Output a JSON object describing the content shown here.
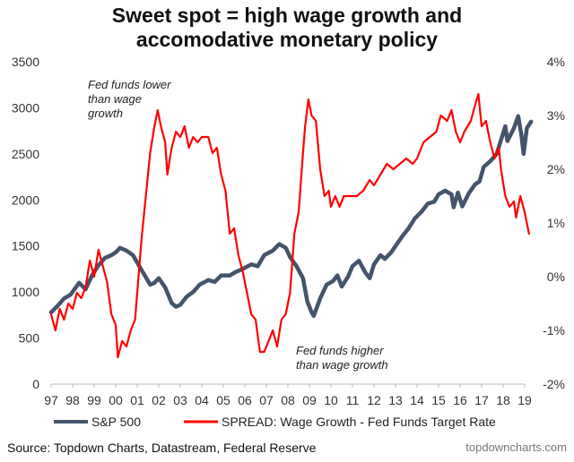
{
  "chart_data": {
    "type": "line",
    "title_lines": [
      "Sweet spot = high wage growth and",
      "accomodative monetary policy"
    ],
    "x_tick_labels": [
      "97",
      "98",
      "99",
      "00",
      "01",
      "02",
      "03",
      "04",
      "05",
      "06",
      "07",
      "08",
      "09",
      "10",
      "11",
      "12",
      "13",
      "14",
      "15",
      "16",
      "17",
      "18",
      "19"
    ],
    "x_range": [
      1997,
      2019
    ],
    "y_left": {
      "range": [
        0,
        3500
      ],
      "ticks": [
        0,
        500,
        1000,
        1500,
        2000,
        2500,
        3000,
        3500
      ],
      "tick_labels": [
        "0",
        "500",
        "1000",
        "1500",
        "2000",
        "2500",
        "3000",
        "3500"
      ]
    },
    "y_right": {
      "range": [
        -2,
        4
      ],
      "ticks": [
        -2,
        -1,
        0,
        1,
        2,
        3,
        4
      ],
      "tick_labels": [
        "-2%",
        "-1%",
        "0%",
        "1%",
        "2%",
        "3%",
        "4%"
      ]
    },
    "series": [
      {
        "name": "S&P 500",
        "axis": "left",
        "color": "#44546a",
        "points": [
          [
            1997.0,
            780
          ],
          [
            1997.3,
            850
          ],
          [
            1997.6,
            930
          ],
          [
            1997.9,
            970
          ],
          [
            1998.3,
            1100
          ],
          [
            1998.6,
            1030
          ],
          [
            1998.9,
            1180
          ],
          [
            1999.2,
            1290
          ],
          [
            1999.5,
            1370
          ],
          [
            1999.8,
            1400
          ],
          [
            2000.0,
            1430
          ],
          [
            2000.2,
            1480
          ],
          [
            2000.5,
            1450
          ],
          [
            2000.8,
            1400
          ],
          [
            2001.0,
            1320
          ],
          [
            2001.3,
            1200
          ],
          [
            2001.6,
            1080
          ],
          [
            2001.8,
            1100
          ],
          [
            2002.0,
            1150
          ],
          [
            2002.3,
            1050
          ],
          [
            2002.6,
            880
          ],
          [
            2002.8,
            840
          ],
          [
            2003.0,
            860
          ],
          [
            2003.3,
            950
          ],
          [
            2003.6,
            1000
          ],
          [
            2003.9,
            1080
          ],
          [
            2004.3,
            1130
          ],
          [
            2004.6,
            1110
          ],
          [
            2004.9,
            1180
          ],
          [
            2005.3,
            1180
          ],
          [
            2005.6,
            1220
          ],
          [
            2005.9,
            1250
          ],
          [
            2006.3,
            1300
          ],
          [
            2006.6,
            1280
          ],
          [
            2006.9,
            1400
          ],
          [
            2007.3,
            1450
          ],
          [
            2007.6,
            1520
          ],
          [
            2007.9,
            1480
          ],
          [
            2008.1,
            1380
          ],
          [
            2008.4,
            1280
          ],
          [
            2008.7,
            1150
          ],
          [
            2008.9,
            900
          ],
          [
            2009.1,
            780
          ],
          [
            2009.2,
            740
          ],
          [
            2009.5,
            930
          ],
          [
            2009.8,
            1080
          ],
          [
            2010.1,
            1120
          ],
          [
            2010.3,
            1180
          ],
          [
            2010.5,
            1060
          ],
          [
            2010.8,
            1170
          ],
          [
            2011.0,
            1280
          ],
          [
            2011.3,
            1340
          ],
          [
            2011.6,
            1210
          ],
          [
            2011.8,
            1150
          ],
          [
            2012.0,
            1300
          ],
          [
            2012.3,
            1400
          ],
          [
            2012.5,
            1360
          ],
          [
            2012.8,
            1430
          ],
          [
            2013.0,
            1500
          ],
          [
            2013.3,
            1600
          ],
          [
            2013.6,
            1690
          ],
          [
            2013.9,
            1800
          ],
          [
            2014.2,
            1870
          ],
          [
            2014.5,
            1960
          ],
          [
            2014.8,
            1980
          ],
          [
            2015.0,
            2060
          ],
          [
            2015.3,
            2100
          ],
          [
            2015.6,
            2060
          ],
          [
            2015.7,
            1920
          ],
          [
            2015.9,
            2080
          ],
          [
            2016.1,
            1930
          ],
          [
            2016.4,
            2070
          ],
          [
            2016.7,
            2170
          ],
          [
            2016.9,
            2200
          ],
          [
            2017.1,
            2360
          ],
          [
            2017.4,
            2420
          ],
          [
            2017.7,
            2500
          ],
          [
            2017.9,
            2650
          ],
          [
            2018.1,
            2800
          ],
          [
            2018.2,
            2640
          ],
          [
            2018.5,
            2780
          ],
          [
            2018.7,
            2910
          ],
          [
            2018.85,
            2700
          ],
          [
            2018.95,
            2500
          ],
          [
            2019.1,
            2780
          ],
          [
            2019.3,
            2850
          ]
        ]
      },
      {
        "name": "SPREAD: Wage Growth - Fed Funds Target Rate",
        "axis": "right",
        "color": "#ff0000",
        "points": [
          [
            1997.0,
            -0.7
          ],
          [
            1997.2,
            -1.0
          ],
          [
            1997.4,
            -0.6
          ],
          [
            1997.6,
            -0.8
          ],
          [
            1997.8,
            -0.5
          ],
          [
            1998.0,
            -0.6
          ],
          [
            1998.2,
            -0.3
          ],
          [
            1998.4,
            -0.4
          ],
          [
            1998.6,
            -0.2
          ],
          [
            1998.8,
            0.3
          ],
          [
            1999.0,
            0.0
          ],
          [
            1999.2,
            0.5
          ],
          [
            1999.4,
            0.2
          ],
          [
            1999.6,
            -0.1
          ],
          [
            1999.8,
            -0.7
          ],
          [
            2000.0,
            -0.9
          ],
          [
            2000.1,
            -1.5
          ],
          [
            2000.3,
            -1.2
          ],
          [
            2000.5,
            -1.3
          ],
          [
            2000.7,
            -1.0
          ],
          [
            2000.9,
            -0.8
          ],
          [
            2001.0,
            -0.3
          ],
          [
            2001.2,
            0.7
          ],
          [
            2001.4,
            1.5
          ],
          [
            2001.6,
            2.3
          ],
          [
            2001.8,
            2.8
          ],
          [
            2001.95,
            3.1
          ],
          [
            2002.1,
            2.8
          ],
          [
            2002.3,
            2.5
          ],
          [
            2002.4,
            1.9
          ],
          [
            2002.6,
            2.4
          ],
          [
            2002.8,
            2.7
          ],
          [
            2003.0,
            2.6
          ],
          [
            2003.2,
            2.8
          ],
          [
            2003.4,
            2.4
          ],
          [
            2003.6,
            2.6
          ],
          [
            2003.8,
            2.5
          ],
          [
            2004.0,
            2.6
          ],
          [
            2004.3,
            2.6
          ],
          [
            2004.5,
            2.3
          ],
          [
            2004.7,
            2.4
          ],
          [
            2004.9,
            1.9
          ],
          [
            2005.1,
            1.6
          ],
          [
            2005.3,
            0.8
          ],
          [
            2005.5,
            0.9
          ],
          [
            2005.7,
            0.4
          ],
          [
            2005.9,
            0.1
          ],
          [
            2006.1,
            -0.3
          ],
          [
            2006.3,
            -0.7
          ],
          [
            2006.5,
            -0.8
          ],
          [
            2006.7,
            -1.4
          ],
          [
            2006.9,
            -1.4
          ],
          [
            2007.1,
            -1.2
          ],
          [
            2007.3,
            -1.0
          ],
          [
            2007.5,
            -1.3
          ],
          [
            2007.7,
            -0.8
          ],
          [
            2007.9,
            -0.7
          ],
          [
            2008.1,
            -0.3
          ],
          [
            2008.3,
            0.8
          ],
          [
            2008.5,
            1.2
          ],
          [
            2008.7,
            2.3
          ],
          [
            2008.8,
            2.8
          ],
          [
            2008.95,
            3.3
          ],
          [
            2009.1,
            3.0
          ],
          [
            2009.3,
            2.9
          ],
          [
            2009.5,
            2.0
          ],
          [
            2009.7,
            1.5
          ],
          [
            2009.9,
            1.6
          ],
          [
            2010.0,
            1.3
          ],
          [
            2010.2,
            1.5
          ],
          [
            2010.4,
            1.3
          ],
          [
            2010.6,
            1.5
          ],
          [
            2010.9,
            1.5
          ],
          [
            2011.2,
            1.5
          ],
          [
            2011.5,
            1.6
          ],
          [
            2011.8,
            1.8
          ],
          [
            2012.0,
            1.7
          ],
          [
            2012.3,
            1.9
          ],
          [
            2012.6,
            2.1
          ],
          [
            2012.9,
            2.0
          ],
          [
            2013.2,
            2.1
          ],
          [
            2013.5,
            2.2
          ],
          [
            2013.8,
            2.1
          ],
          [
            2014.0,
            2.2
          ],
          [
            2014.3,
            2.5
          ],
          [
            2014.6,
            2.6
          ],
          [
            2014.9,
            2.7
          ],
          [
            2015.1,
            3.0
          ],
          [
            2015.4,
            2.9
          ],
          [
            2015.6,
            3.1
          ],
          [
            2015.8,
            2.7
          ],
          [
            2016.0,
            2.5
          ],
          [
            2016.2,
            2.7
          ],
          [
            2016.5,
            2.9
          ],
          [
            2016.7,
            3.2
          ],
          [
            2016.85,
            3.4
          ],
          [
            2017.0,
            2.8
          ],
          [
            2017.2,
            2.9
          ],
          [
            2017.4,
            2.5
          ],
          [
            2017.6,
            2.2
          ],
          [
            2017.8,
            2.4
          ],
          [
            2017.9,
            2.0
          ],
          [
            2018.1,
            1.5
          ],
          [
            2018.3,
            1.3
          ],
          [
            2018.5,
            1.4
          ],
          [
            2018.6,
            1.1
          ],
          [
            2018.8,
            1.5
          ],
          [
            2019.0,
            1.2
          ],
          [
            2019.2,
            0.8
          ]
        ]
      }
    ],
    "annotations": [
      {
        "lines": [
          "Fed funds lower",
          "than wage",
          "growth"
        ],
        "position": "upper-left"
      },
      {
        "lines": [
          "Fed funds higher",
          "than wage growth"
        ],
        "position": "lower-middle"
      }
    ],
    "legend": {
      "placement": "bottom"
    }
  },
  "footer": {
    "source": "Source: Topdown Charts, Datastream, Federal Reserve",
    "brand": "topdowncharts.com"
  }
}
